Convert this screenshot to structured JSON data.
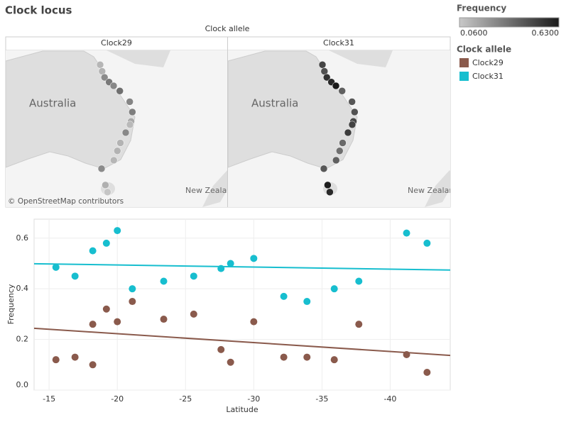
{
  "chart_data": {
    "type": "scatter",
    "title": "Clock locus",
    "xlabel": "Latitude",
    "ylabel": "Frequency",
    "legend_title": "Clock allele",
    "color_legend": {
      "title": "Frequency",
      "min": {
        "value": 0.06,
        "label": "0.0600"
      },
      "max": {
        "value": 0.63,
        "label": "0.6300"
      },
      "colors": [
        "#c8c8c8",
        "#1a1a1a"
      ]
    },
    "map": {
      "labels": [
        "Australia",
        "New Zealand"
      ],
      "attribution": "© OpenStreetMap contributors"
    },
    "xlim": [
      -13.9,
      -44.4
    ],
    "xticks": [
      -15,
      -20,
      -25,
      -30,
      -35,
      -40
    ],
    "ylim": [
      0,
      0.675
    ],
    "yticks": [
      {
        "value": 0,
        "label": "0.0"
      },
      0.2,
      0.4,
      0.6
    ],
    "grid": true,
    "series": [
      {
        "name": "Clock29",
        "color": "#8a5a4c",
        "x": [
          -15.5,
          -16.9,
          -18.2,
          -18.2,
          -19.2,
          -20.0,
          -21.1,
          -23.4,
          -25.6,
          -27.6,
          -28.3,
          -30.0,
          -32.2,
          -33.9,
          -35.9,
          -37.7,
          -41.2,
          -42.7
        ],
        "values": [
          0.12,
          0.13,
          0.1,
          0.26,
          0.32,
          0.27,
          0.35,
          0.28,
          0.3,
          0.16,
          0.11,
          0.27,
          0.13,
          0.13,
          0.12,
          0.26,
          0.14,
          0.07
        ],
        "trend": [
          0.244,
          0.137
        ]
      },
      {
        "name": "Clock31",
        "color": "#17becf",
        "x": [
          -15.5,
          -16.9,
          -18.2,
          -19.2,
          -20.0,
          -21.1,
          -23.4,
          -25.6,
          -27.6,
          -28.3,
          -30.0,
          -32.2,
          -33.9,
          -35.9,
          -37.7,
          -41.2,
          -42.7
        ],
        "values": [
          0.485,
          0.45,
          0.55,
          0.58,
          0.63,
          0.4,
          0.43,
          0.45,
          0.48,
          0.5,
          0.52,
          0.37,
          0.35,
          0.4,
          0.43,
          0.62,
          0.58
        ],
        "trend": [
          0.499,
          0.474
        ]
      }
    ]
  }
}
